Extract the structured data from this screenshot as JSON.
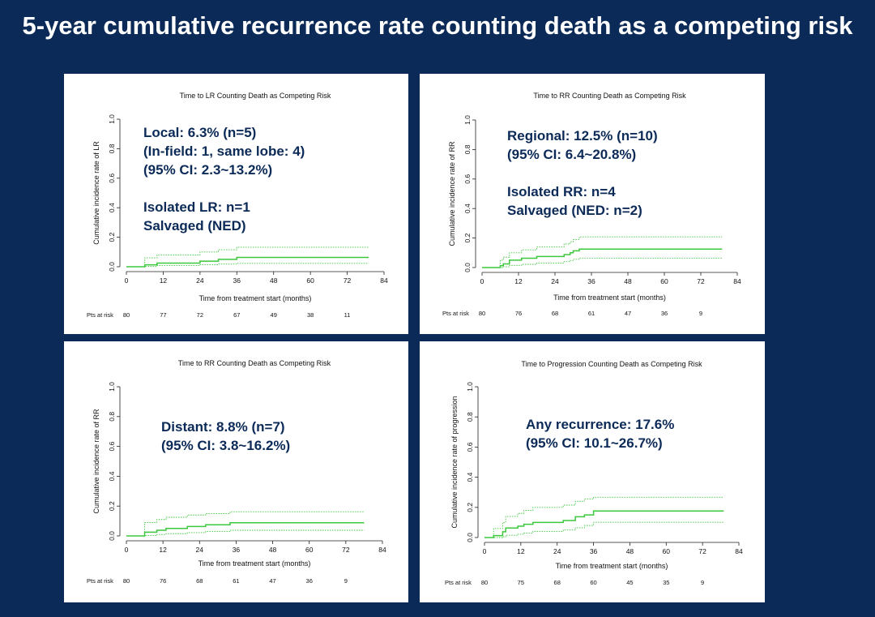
{
  "slide_title": "5-year cumulative recurrence rate counting death as a competing risk",
  "colors": {
    "background": "#0b2a57",
    "panel": "#ffffff",
    "curve": "#3cc83c",
    "annotation": "#0b2a57"
  },
  "chart_data": [
    {
      "type": "line",
      "title": "Time to LR Counting Death as Competing Risk",
      "xlabel": "Time from treatment start (months)",
      "ylabel": "Cumulative incidence rate of LR",
      "xlim": [
        0,
        84
      ],
      "ylim": [
        0,
        1
      ],
      "xticks": [
        "0",
        "12",
        "24",
        "36",
        "48",
        "60",
        "72",
        "84"
      ],
      "yticks": [
        "0.0",
        "0.2",
        "0.4",
        "0.6",
        "0.8",
        "1.0"
      ],
      "risk_label": "Pts at risk",
      "risk_values": [
        "80",
        "77",
        "72",
        "67",
        "49",
        "38",
        "11"
      ],
      "annotations": [
        "Local: 6.3% (n=5)",
        "(In-field: 1, same lobe: 4)",
        "(95% CI: 2.3~13.2%)",
        "",
        "Isolated LR: n=1",
        "Salvaged (NED)"
      ],
      "series": [
        {
          "values": [
            [
              0,
              0
            ],
            [
              6,
              0.013
            ],
            [
              10,
              0.025
            ],
            [
              24,
              0.038
            ],
            [
              30,
              0.05
            ],
            [
              36,
              0.063
            ],
            [
              79,
              0.063
            ]
          ]
        },
        {
          "values": [
            [
              0,
              0
            ],
            [
              6,
              0.06
            ],
            [
              10,
              0.08
            ],
            [
              24,
              0.1
            ],
            [
              30,
              0.115
            ],
            [
              36,
              0.132
            ],
            [
              79,
              0.132
            ]
          ]
        },
        {
          "values": [
            [
              0,
              0
            ],
            [
              6,
              0.003
            ],
            [
              10,
              0.008
            ],
            [
              24,
              0.014
            ],
            [
              30,
              0.018
            ],
            [
              36,
              0.023
            ],
            [
              79,
              0.023
            ]
          ]
        }
      ]
    },
    {
      "type": "line",
      "title": "Time to RR Counting Death as Competing Risk",
      "xlabel": "Time from treatment start (months)",
      "ylabel": "Cumulative incidence rate of RR",
      "xlim": [
        0,
        84
      ],
      "ylim": [
        0,
        1
      ],
      "xticks": [
        "0",
        "12",
        "24",
        "36",
        "48",
        "60",
        "72",
        "84"
      ],
      "yticks": [
        "0.0",
        "0.2",
        "0.4",
        "0.6",
        "0.8",
        "1.0"
      ],
      "risk_label": "Pts at risk",
      "risk_values": [
        "80",
        "76",
        "68",
        "61",
        "47",
        "36",
        "9"
      ],
      "annotations": [
        "Regional: 12.5% (n=10)",
        "(95% CI: 6.4~20.8%)",
        "",
        "Isolated RR: n=4",
        "Salvaged (NED: n=2)"
      ],
      "series": [
        {
          "values": [
            [
              0,
              0
            ],
            [
              6,
              0.013
            ],
            [
              7,
              0.025
            ],
            [
              9,
              0.05
            ],
            [
              13,
              0.063
            ],
            [
              18,
              0.075
            ],
            [
              27,
              0.088
            ],
            [
              29,
              0.1
            ],
            [
              30,
              0.113
            ],
            [
              32,
              0.125
            ],
            [
              79,
              0.125
            ]
          ]
        },
        {
          "values": [
            [
              0,
              0
            ],
            [
              6,
              0.05
            ],
            [
              7,
              0.07
            ],
            [
              9,
              0.1
            ],
            [
              13,
              0.12
            ],
            [
              18,
              0.14
            ],
            [
              27,
              0.16
            ],
            [
              29,
              0.175
            ],
            [
              30,
              0.19
            ],
            [
              32,
              0.208
            ],
            [
              79,
              0.208
            ]
          ]
        },
        {
          "values": [
            [
              0,
              0
            ],
            [
              6,
              0.0
            ],
            [
              7,
              0.005
            ],
            [
              9,
              0.015
            ],
            [
              13,
              0.022
            ],
            [
              18,
              0.03
            ],
            [
              27,
              0.04
            ],
            [
              29,
              0.048
            ],
            [
              30,
              0.056
            ],
            [
              32,
              0.064
            ],
            [
              79,
              0.064
            ]
          ]
        }
      ]
    },
    {
      "type": "line",
      "title": "Time to RR Counting Death as Competing Risk",
      "xlabel": "Time from treatment start (months)",
      "ylabel": "Cumulative incidence rate of RR",
      "xlim": [
        0,
        84
      ],
      "ylim": [
        0,
        1
      ],
      "xticks": [
        "0",
        "12",
        "24",
        "36",
        "48",
        "60",
        "72",
        "84"
      ],
      "yticks": [
        "0.0",
        "0.2",
        "0.4",
        "0.6",
        "0.8",
        "1.0"
      ],
      "risk_label": "Pts at risk",
      "risk_values": [
        "80",
        "76",
        "68",
        "61",
        "47",
        "36",
        "9"
      ],
      "annotations": [
        "Distant: 8.8% (n=7)",
        "(95% CI: 3.8~16.2%)"
      ],
      "series": [
        {
          "values": [
            [
              0,
              0
            ],
            [
              6,
              0.025
            ],
            [
              10,
              0.038
            ],
            [
              13,
              0.05
            ],
            [
              20,
              0.063
            ],
            [
              26,
              0.075
            ],
            [
              34,
              0.088
            ],
            [
              78,
              0.088
            ]
          ]
        },
        {
          "values": [
            [
              0,
              0
            ],
            [
              6,
              0.09
            ],
            [
              10,
              0.11
            ],
            [
              13,
              0.125
            ],
            [
              20,
              0.14
            ],
            [
              26,
              0.15
            ],
            [
              34,
              0.162
            ],
            [
              78,
              0.162
            ]
          ]
        },
        {
          "values": [
            [
              0,
              0
            ],
            [
              6,
              0.003
            ],
            [
              10,
              0.01
            ],
            [
              13,
              0.015
            ],
            [
              20,
              0.022
            ],
            [
              26,
              0.03
            ],
            [
              34,
              0.038
            ],
            [
              78,
              0.038
            ]
          ]
        }
      ]
    },
    {
      "type": "line",
      "title": "Time to Progression Counting Death as Competing Risk",
      "xlabel": "Time from treatment start (months)",
      "ylabel": "Cumulative incidence rate of progression",
      "xlim": [
        0,
        84
      ],
      "ylim": [
        0,
        1
      ],
      "xticks": [
        "0",
        "12",
        "24",
        "36",
        "48",
        "60",
        "72",
        "84"
      ],
      "yticks": [
        "0.0",
        "0.2",
        "0.4",
        "0.6",
        "0.8",
        "1.0"
      ],
      "risk_label": "Pts at risk",
      "risk_values": [
        "80",
        "75",
        "68",
        "60",
        "45",
        "35",
        "9"
      ],
      "annotations": [
        "Any recurrence: 17.6%",
        "(95% CI: 10.1~26.7%)"
      ],
      "series": [
        {
          "values": [
            [
              0,
              0
            ],
            [
              3,
              0.013
            ],
            [
              6,
              0.038
            ],
            [
              7,
              0.063
            ],
            [
              11,
              0.075
            ],
            [
              13,
              0.088
            ],
            [
              16,
              0.1
            ],
            [
              26,
              0.113
            ],
            [
              30,
              0.138
            ],
            [
              33,
              0.15
            ],
            [
              36,
              0.176
            ],
            [
              79,
              0.176
            ]
          ]
        },
        {
          "values": [
            [
              0,
              0
            ],
            [
              3,
              0.06
            ],
            [
              6,
              0.1
            ],
            [
              7,
              0.14
            ],
            [
              11,
              0.16
            ],
            [
              13,
              0.18
            ],
            [
              16,
              0.2
            ],
            [
              26,
              0.215
            ],
            [
              30,
              0.24
            ],
            [
              33,
              0.255
            ],
            [
              36,
              0.267
            ],
            [
              79,
              0.267
            ]
          ]
        },
        {
          "values": [
            [
              0,
              0
            ],
            [
              3,
              0.0
            ],
            [
              6,
              0.005
            ],
            [
              7,
              0.015
            ],
            [
              11,
              0.022
            ],
            [
              13,
              0.03
            ],
            [
              16,
              0.04
            ],
            [
              26,
              0.05
            ],
            [
              30,
              0.065
            ],
            [
              33,
              0.08
            ],
            [
              36,
              0.101
            ],
            [
              79,
              0.101
            ]
          ]
        }
      ]
    }
  ]
}
